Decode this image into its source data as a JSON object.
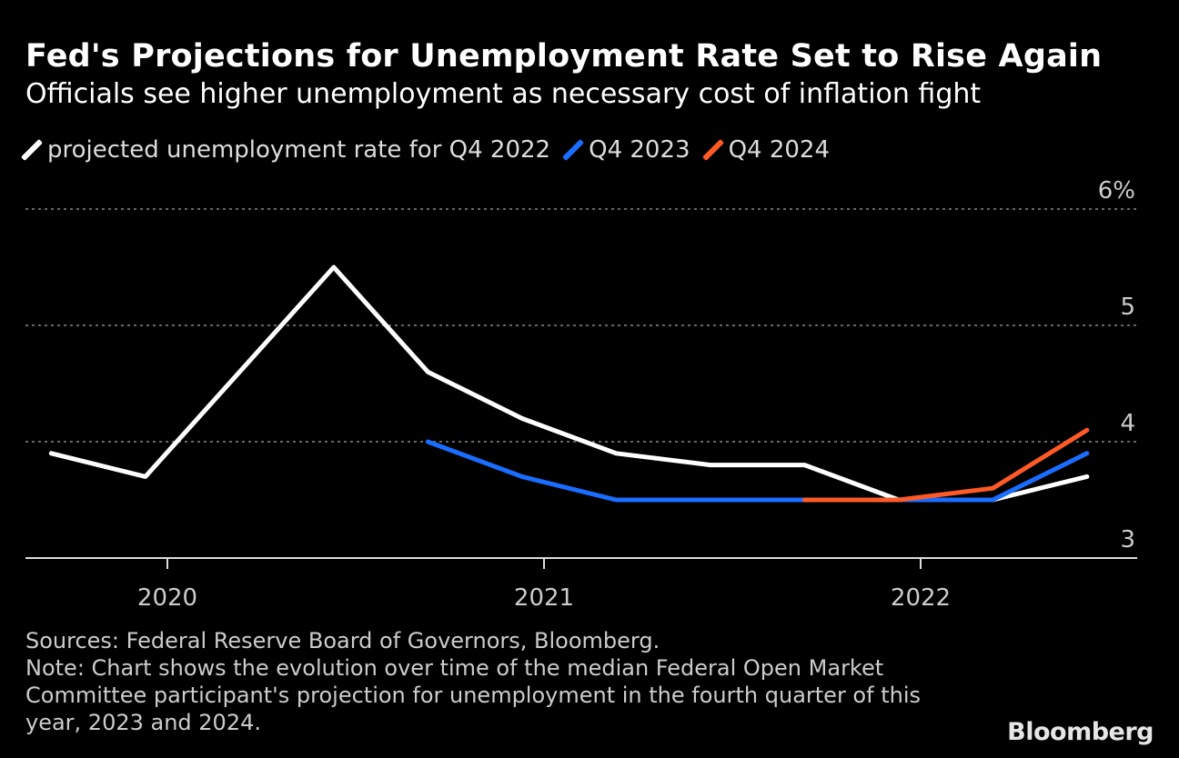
{
  "chart_data": {
    "type": "line",
    "title": "Fed's Projections for Unemployment Rate Set to Rise Again",
    "subtitle": "Officials see higher unemployment as necessary cost of inflation fight",
    "xlabel": "",
    "ylabel": "",
    "ylim": [
      3,
      6
    ],
    "yticks": [
      "6%",
      "5",
      "4",
      "3"
    ],
    "yticks_values": [
      6,
      5,
      4,
      3
    ],
    "xticks": [
      "2020",
      "2021",
      "2022"
    ],
    "grid": true,
    "legend_position": "top-left",
    "series": [
      {
        "name": "projected unemployment rate for Q4 2022",
        "color": "#ffffff",
        "x": [
          "2019-09",
          "2019-12",
          "2020-06",
          "2020-09",
          "2020-12",
          "2021-03",
          "2021-06",
          "2021-09",
          "2021-12",
          "2022-03",
          "2022-06"
        ],
        "values": [
          3.9,
          3.7,
          5.5,
          4.6,
          4.2,
          3.9,
          3.8,
          3.8,
          3.5,
          3.5,
          3.7
        ]
      },
      {
        "name": "Q4 2023",
        "color": "#1a6dff",
        "x": [
          "2020-09",
          "2020-12",
          "2021-03",
          "2021-06",
          "2021-09",
          "2021-12",
          "2022-03",
          "2022-06"
        ],
        "values": [
          4.0,
          3.7,
          3.5,
          3.5,
          3.5,
          3.5,
          3.5,
          3.9
        ]
      },
      {
        "name": "Q4 2024",
        "color": "#ff5a26",
        "x": [
          "2021-09",
          "2021-12",
          "2022-03",
          "2022-06"
        ],
        "values": [
          3.5,
          3.5,
          3.6,
          4.1
        ]
      }
    ]
  },
  "footer": {
    "source": "Sources: Federal Reserve Board of Governors, Bloomberg.",
    "note": "Note: Chart shows the evolution over time of the median Federal Open Market Committee participant's projection for unemployment in the fourth quarter of this year, 2023 and 2024.",
    "logo": "Bloomberg"
  }
}
